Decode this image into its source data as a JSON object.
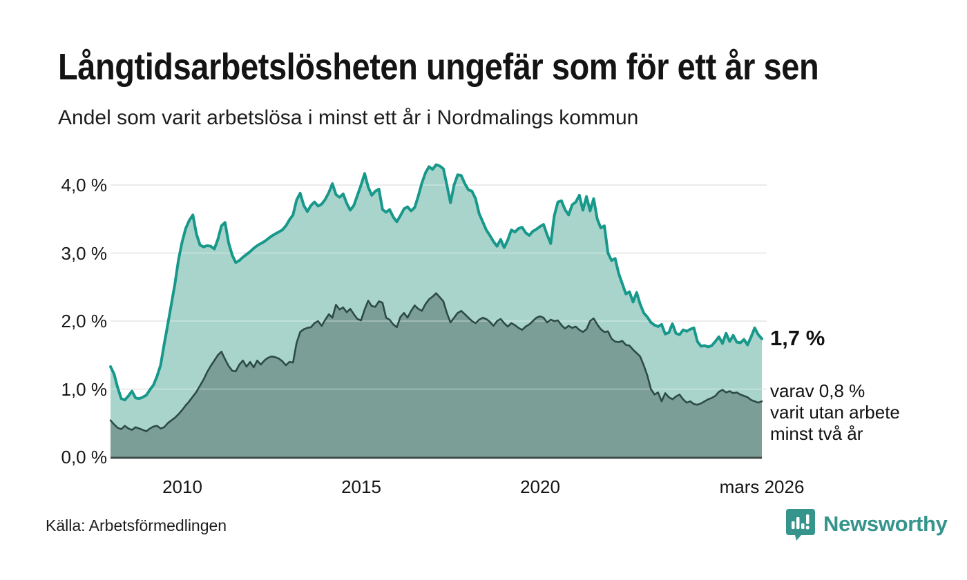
{
  "page": {
    "title": "Långtidsarbetslösheten ungefär som för ett år sen",
    "subtitle": "Andel som varit arbetslösa i minst ett år i Nordmalings kommun"
  },
  "annotations": {
    "latest_total": "1,7 %",
    "latest_two_year": "varav 0,8 %\nvarit utan arbete\nminst två år"
  },
  "source": {
    "label": "Källa: Arbetsförmedlingen"
  },
  "branding": {
    "logo_text": "Newsworthy",
    "logo_icon": "newsworthy-speech-bubble-bar-chart-icon",
    "brand_color": "#35948c"
  },
  "colors": {
    "total_line": "#17988b",
    "total_fill": "#a9d4cc",
    "two_year_line": "#2d4b46",
    "two_year_fill": "#7b9e97",
    "gridline": "#d9d9d9",
    "gridline_over_fill": "rgba(255,255,255,0.38)",
    "baseline": "#414c4a"
  },
  "chart_data": {
    "type": "area",
    "title": "Långtidsarbetslösheten ungefär som för ett år sen",
    "subtitle": "Andel som varit arbetslösa i minst ett år i Nordmalings kommun",
    "unit": "%",
    "grid": true,
    "legend": "none (series identified by end labels)",
    "x_axis": {
      "start": 2008.0,
      "step": 0.1,
      "end": 2026.2,
      "ticks": [
        {
          "x": 2010,
          "label": "2010"
        },
        {
          "x": 2015,
          "label": "2015"
        },
        {
          "x": 2020,
          "label": "2020"
        },
        {
          "x": 2026.2,
          "label": "mars 2026"
        }
      ]
    },
    "y_axis": {
      "min": 0,
      "max": 4.4,
      "ticks": [
        {
          "value": 0,
          "label": "0,0 %"
        },
        {
          "value": 1,
          "label": "1,0 %"
        },
        {
          "value": 2,
          "label": "2,0 %"
        },
        {
          "value": 3,
          "label": "3,0 %"
        },
        {
          "value": 4,
          "label": "4,0 %"
        }
      ]
    },
    "series": [
      {
        "name": "andel_arbetslosa_minst_ett_ar",
        "end_label": "1,7 %",
        "latest_value": 1.7,
        "values": [
          1.33,
          1.22,
          1.02,
          0.86,
          0.84,
          0.9,
          0.97,
          0.87,
          0.86,
          0.88,
          0.91,
          0.99,
          1.06,
          1.19,
          1.35,
          1.66,
          1.95,
          2.25,
          2.55,
          2.9,
          3.16,
          3.36,
          3.48,
          3.56,
          3.28,
          3.12,
          3.09,
          3.11,
          3.1,
          3.06,
          3.2,
          3.4,
          3.45,
          3.15,
          2.97,
          2.86,
          2.89,
          2.94,
          2.98,
          3.02,
          3.07,
          3.11,
          3.14,
          3.17,
          3.21,
          3.25,
          3.28,
          3.31,
          3.34,
          3.4,
          3.49,
          3.56,
          3.78,
          3.88,
          3.7,
          3.61,
          3.7,
          3.75,
          3.69,
          3.72,
          3.79,
          3.89,
          4.02,
          3.86,
          3.82,
          3.87,
          3.73,
          3.63,
          3.7,
          3.85,
          4.0,
          4.17,
          3.97,
          3.85,
          3.91,
          3.94,
          3.64,
          3.6,
          3.64,
          3.53,
          3.46,
          3.55,
          3.65,
          3.68,
          3.62,
          3.67,
          3.84,
          4.03,
          4.18,
          4.27,
          4.23,
          4.3,
          4.28,
          4.24,
          4.0,
          3.74,
          4.0,
          4.15,
          4.14,
          4.02,
          3.93,
          3.91,
          3.8,
          3.58,
          3.46,
          3.34,
          3.26,
          3.17,
          3.1,
          3.2,
          3.08,
          3.19,
          3.34,
          3.31,
          3.36,
          3.38,
          3.3,
          3.26,
          3.32,
          3.35,
          3.39,
          3.42,
          3.27,
          3.14,
          3.55,
          3.75,
          3.77,
          3.64,
          3.56,
          3.71,
          3.75,
          3.85,
          3.63,
          3.83,
          3.62,
          3.8,
          3.5,
          3.37,
          3.4,
          3.0,
          2.89,
          2.92,
          2.7,
          2.55,
          2.4,
          2.43,
          2.28,
          2.42,
          2.25,
          2.12,
          2.06,
          1.98,
          1.94,
          1.92,
          1.95,
          1.81,
          1.83,
          1.96,
          1.82,
          1.8,
          1.87,
          1.85,
          1.88,
          1.9,
          1.7,
          1.63,
          1.64,
          1.62,
          1.64,
          1.7,
          1.77,
          1.67,
          1.82,
          1.7,
          1.79,
          1.69,
          1.68,
          1.73,
          1.65,
          1.77,
          1.9,
          1.8,
          1.74
        ]
      },
      {
        "name": "varav_arbetslosa_minst_tva_ar",
        "end_label": "varav 0,8 % varit utan arbete minst två år",
        "latest_value": 0.8,
        "values": [
          0.54,
          0.48,
          0.43,
          0.41,
          0.46,
          0.42,
          0.4,
          0.44,
          0.42,
          0.4,
          0.38,
          0.42,
          0.45,
          0.46,
          0.42,
          0.44,
          0.5,
          0.54,
          0.58,
          0.63,
          0.69,
          0.76,
          0.82,
          0.89,
          0.96,
          1.05,
          1.14,
          1.25,
          1.34,
          1.42,
          1.5,
          1.55,
          1.44,
          1.34,
          1.27,
          1.26,
          1.36,
          1.42,
          1.33,
          1.4,
          1.32,
          1.42,
          1.36,
          1.42,
          1.46,
          1.48,
          1.47,
          1.45,
          1.41,
          1.35,
          1.4,
          1.39,
          1.68,
          1.84,
          1.88,
          1.9,
          1.91,
          1.97,
          2.0,
          1.93,
          2.02,
          2.1,
          2.05,
          2.24,
          2.17,
          2.2,
          2.13,
          2.18,
          2.1,
          2.03,
          2.01,
          2.17,
          2.3,
          2.22,
          2.21,
          2.29,
          2.27,
          2.05,
          2.02,
          1.95,
          1.91,
          2.06,
          2.12,
          2.05,
          2.15,
          2.23,
          2.18,
          2.15,
          2.25,
          2.32,
          2.36,
          2.41,
          2.35,
          2.29,
          2.12,
          1.98,
          2.05,
          2.12,
          2.15,
          2.1,
          2.05,
          2.0,
          1.97,
          2.02,
          2.05,
          2.03,
          1.99,
          1.93,
          2.0,
          2.03,
          1.97,
          1.92,
          1.97,
          1.94,
          1.9,
          1.87,
          1.92,
          1.95,
          2.0,
          2.05,
          2.07,
          2.05,
          1.98,
          2.02,
          2.0,
          2.01,
          1.94,
          1.89,
          1.93,
          1.9,
          1.92,
          1.87,
          1.84,
          1.88,
          2.0,
          2.04,
          1.95,
          1.88,
          1.84,
          1.85,
          1.74,
          1.7,
          1.69,
          1.71,
          1.65,
          1.64,
          1.58,
          1.53,
          1.48,
          1.35,
          1.2,
          1.0,
          0.92,
          0.95,
          0.82,
          0.94,
          0.88,
          0.85,
          0.89,
          0.92,
          0.85,
          0.8,
          0.82,
          0.78,
          0.77,
          0.79,
          0.82,
          0.85,
          0.87,
          0.9,
          0.96,
          0.99,
          0.95,
          0.97,
          0.94,
          0.95,
          0.92,
          0.9,
          0.88,
          0.84,
          0.82,
          0.8,
          0.82
        ]
      }
    ]
  }
}
